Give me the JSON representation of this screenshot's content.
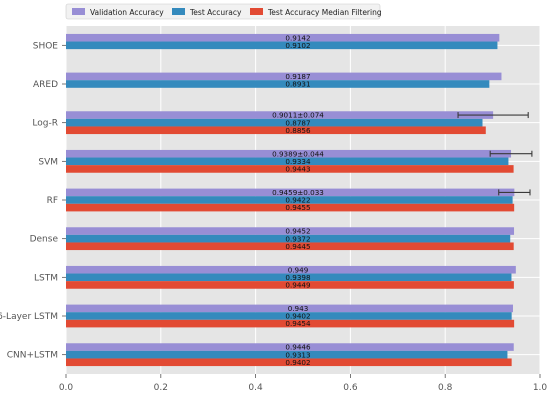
{
  "chart_data": {
    "type": "bar",
    "orientation": "horizontal",
    "categories": [
      "SHOE",
      "ARED",
      "Log-R",
      "SVM",
      "RF",
      "Dense",
      "LSTM",
      "6-Layer LSTM",
      "CNN+LSTM"
    ],
    "series": [
      {
        "name": "Validation Accuracy",
        "color": "#988ed5",
        "values": [
          0.9142,
          0.9187,
          0.9011,
          0.9389,
          0.9459,
          0.9452,
          0.949,
          0.943,
          0.9446
        ],
        "labels": [
          "0.9142",
          "0.9187",
          "0.9011±0.074",
          "0.9389±0.044",
          "0.9459±0.033",
          "0.9452",
          "0.949",
          "0.943",
          "0.9446"
        ],
        "error": [
          null,
          null,
          0.074,
          0.044,
          0.033,
          null,
          null,
          null,
          null
        ]
      },
      {
        "name": "Test Accuracy",
        "color": "#348abd",
        "values": [
          0.9102,
          0.8931,
          0.8787,
          0.9334,
          0.9422,
          0.9372,
          0.9398,
          0.9402,
          0.9313
        ],
        "labels": [
          "0.9102",
          "0.8931",
          "0.8787",
          "0.9334",
          "0.9422",
          "0.9372",
          "0.9398",
          "0.9402",
          "0.9313"
        ]
      },
      {
        "name": "Test Accuracy Median Filtering",
        "color": "#e24a33",
        "values": [
          null,
          null,
          0.8856,
          0.9443,
          0.9455,
          0.9445,
          0.9449,
          0.9454,
          0.9402
        ],
        "labels": [
          "",
          "",
          "0.8856",
          "0.9443",
          "0.9455",
          "0.9445",
          "0.9449",
          "0.9454",
          "0.9402"
        ]
      }
    ],
    "xlim": [
      0.0,
      1.0
    ],
    "xticks": [
      "0.0",
      "0.2",
      "0.4",
      "0.6",
      "0.8",
      "1.0"
    ],
    "grid": true,
    "legend_position": "top-left",
    "colors": {
      "background": "#e5e5e5",
      "grid": "#ffffff",
      "error_bar": "#3a3a3a",
      "text": "#555555"
    }
  }
}
